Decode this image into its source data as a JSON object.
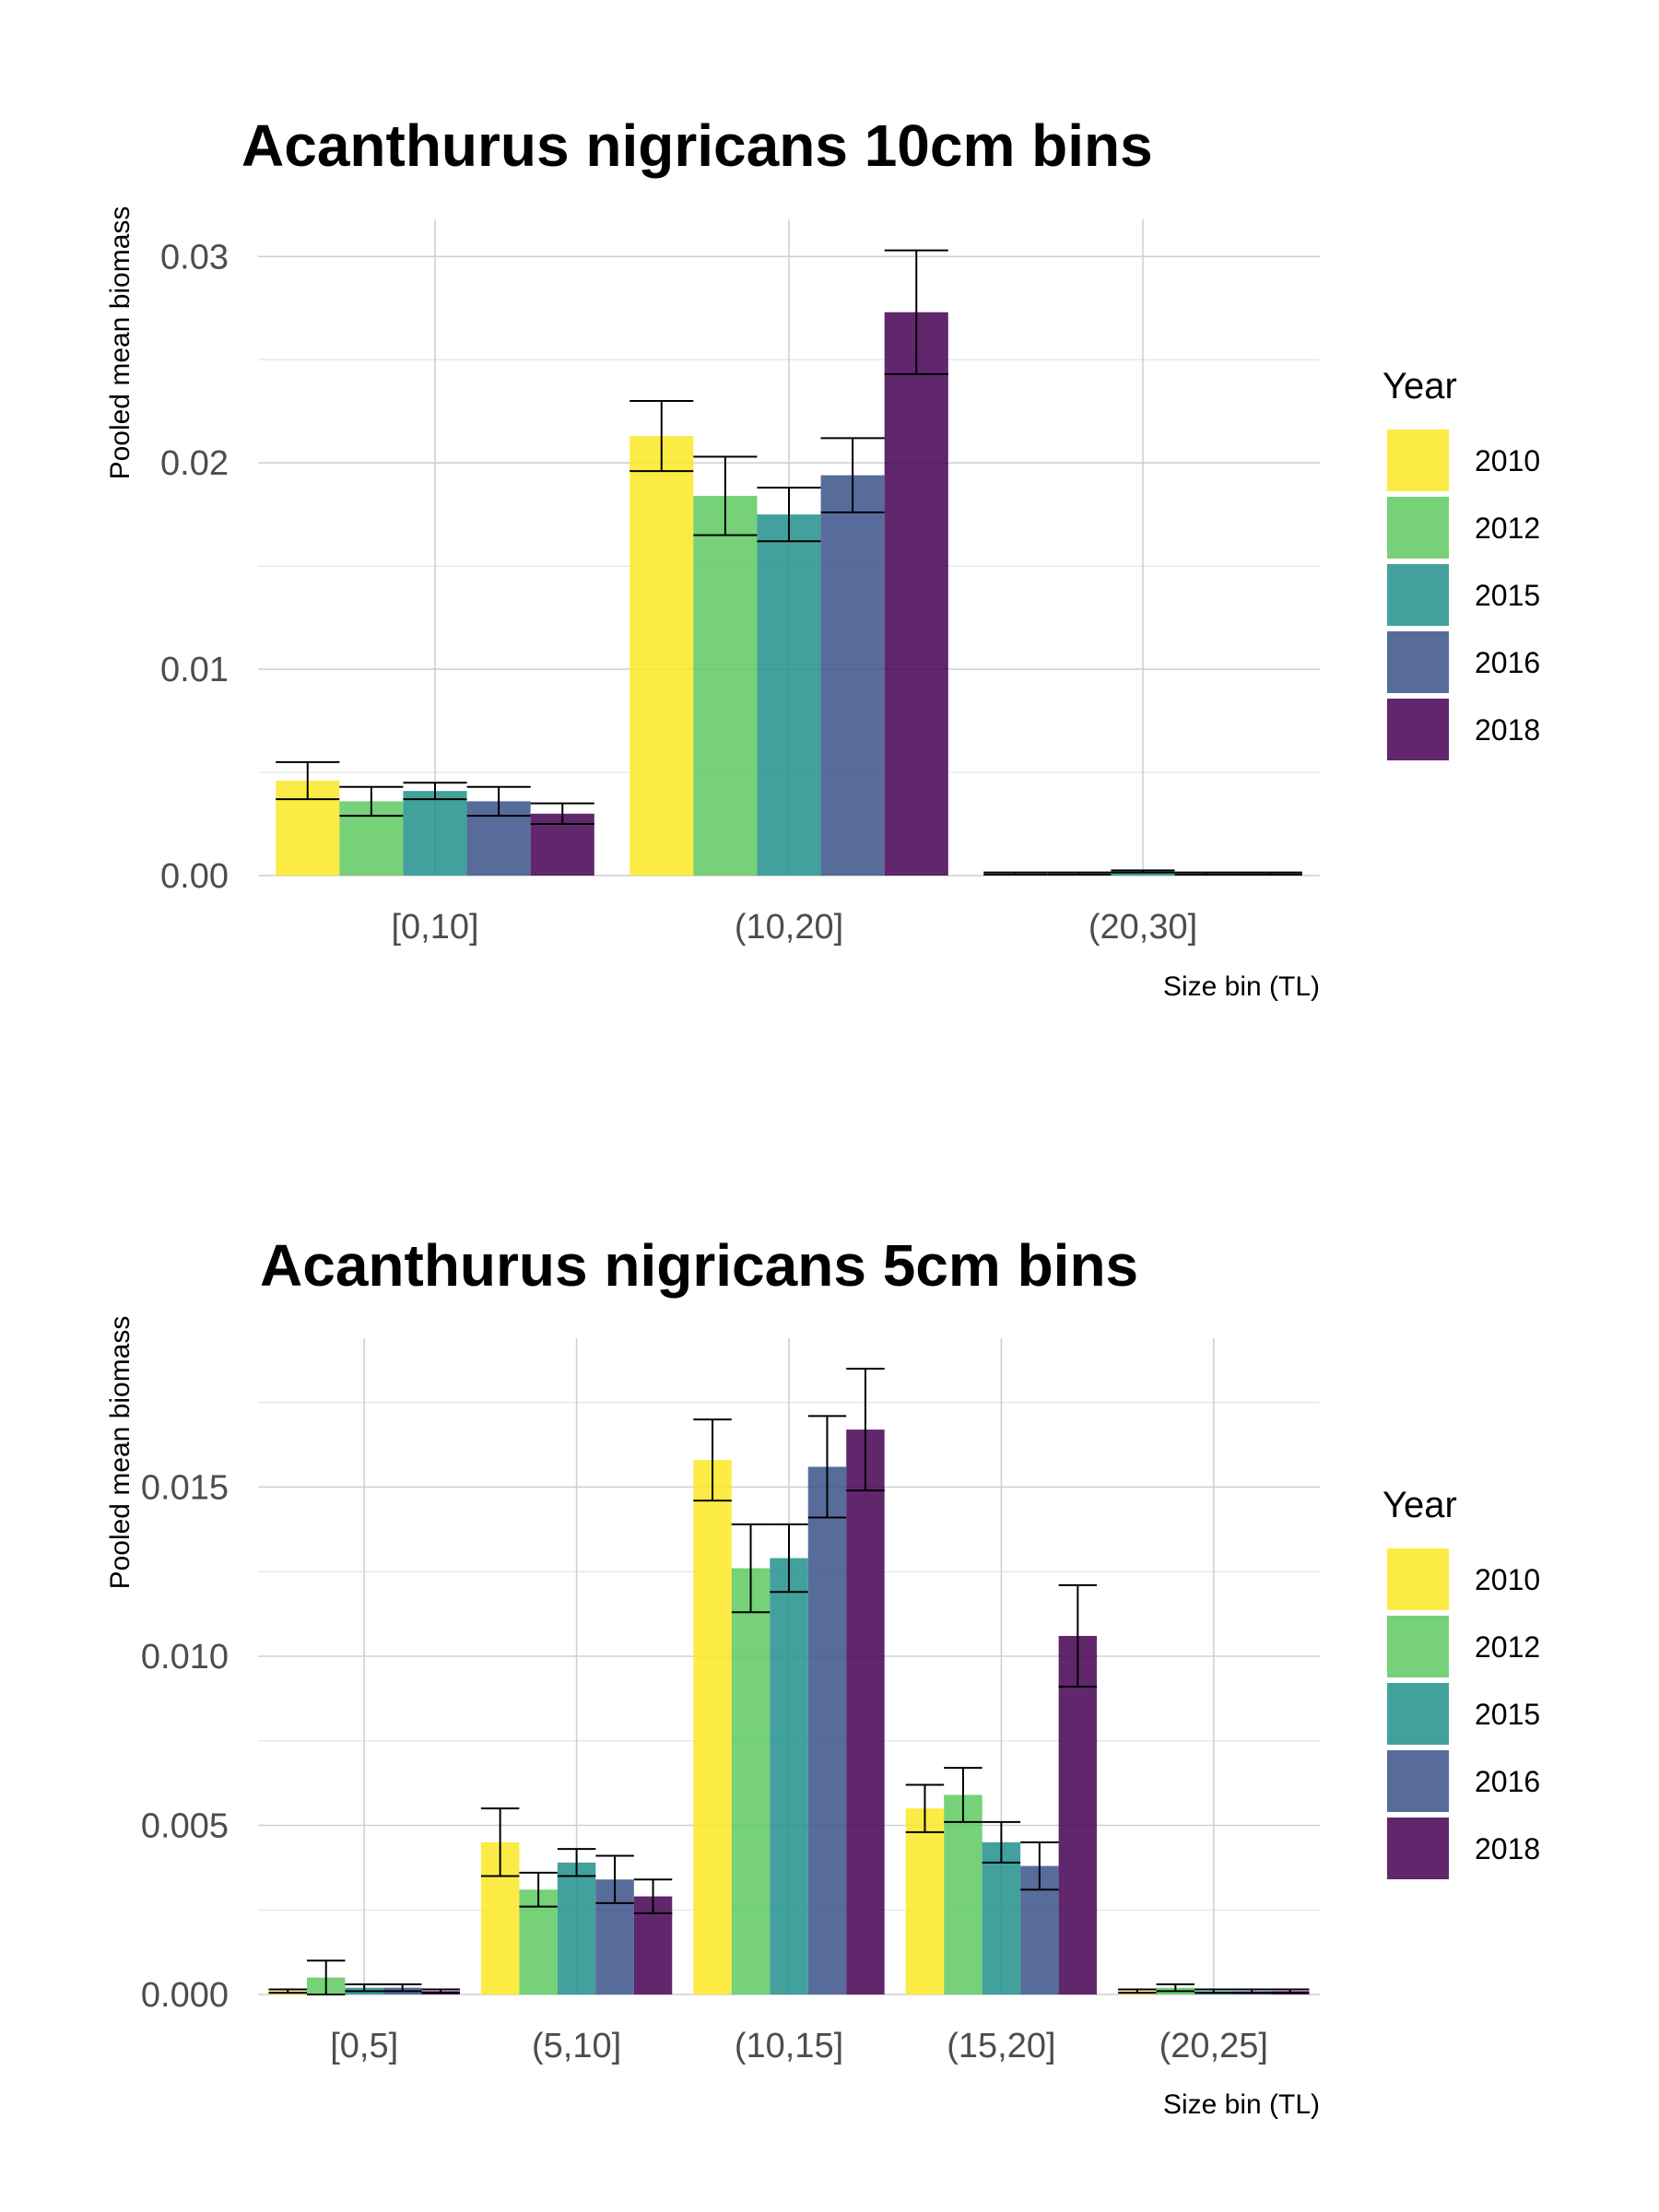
{
  "chart_data": [
    {
      "type": "bar",
      "title": "Acanthurus nigricans 10cm bins",
      "xlabel": "Size bin (TL)",
      "ylabel": "Pooled mean biomass",
      "categories": [
        "[0,10]",
        "(10,20]",
        "(20,30]"
      ],
      "ylim": [
        0,
        0.0318
      ],
      "yticks": [
        "0.00",
        "0.01",
        "0.02",
        "0.03"
      ],
      "ytick_values": [
        0,
        0.01,
        0.02,
        0.03
      ],
      "legend_title": "Year",
      "legend_position": "right",
      "grid": true,
      "series": [
        {
          "name": "2010",
          "color": "#FDE725",
          "values": [
            0.0046,
            0.0213,
            0.0001
          ],
          "err": [
            0.0009,
            0.0017,
            5e-05
          ]
        },
        {
          "name": "2012",
          "color": "#5EC962",
          "values": [
            0.0036,
            0.0184,
            0.0001
          ],
          "err": [
            0.0007,
            0.0019,
            5e-05
          ]
        },
        {
          "name": "2015",
          "color": "#21918C",
          "values": [
            0.0041,
            0.0175,
            0.0002
          ],
          "err": [
            0.0004,
            0.0013,
            5e-05
          ]
        },
        {
          "name": "2016",
          "color": "#3B528B",
          "values": [
            0.0036,
            0.0194,
            0.0001
          ],
          "err": [
            0.0007,
            0.0018,
            5e-05
          ]
        },
        {
          "name": "2018",
          "color": "#440154",
          "values": [
            0.003,
            0.0273,
            0.0001
          ],
          "err": [
            0.0005,
            0.003,
            5e-05
          ]
        }
      ]
    },
    {
      "type": "bar",
      "title": "Acanthurus nigricans 5cm bins",
      "xlabel": "Size bin (TL)",
      "ylabel": "Pooled mean biomass",
      "categories": [
        "[0,5]",
        "(5,10]",
        "(10,15]",
        "(15,20]",
        "(20,25]"
      ],
      "ylim": [
        0,
        0.0194
      ],
      "yticks": [
        "0.000",
        "0.005",
        "0.010",
        "0.015"
      ],
      "ytick_values": [
        0,
        0.005,
        0.01,
        0.015
      ],
      "legend_title": "Year",
      "legend_position": "right",
      "grid": true,
      "series": [
        {
          "name": "2010",
          "color": "#FDE725",
          "values": [
            0.0001,
            0.0045,
            0.0158,
            0.0055,
            0.0001
          ],
          "err": [
            5e-05,
            0.001,
            0.0012,
            0.0007,
            5e-05
          ]
        },
        {
          "name": "2012",
          "color": "#5EC962",
          "values": [
            0.0005,
            0.0031,
            0.0126,
            0.0059,
            0.0002
          ],
          "err": [
            0.0005,
            0.0005,
            0.0013,
            0.0008,
            0.0001
          ]
        },
        {
          "name": "2015",
          "color": "#21918C",
          "values": [
            0.0002,
            0.0039,
            0.0129,
            0.0045,
            0.0001
          ],
          "err": [
            0.0001,
            0.0004,
            0.001,
            0.0006,
            5e-05
          ]
        },
        {
          "name": "2016",
          "color": "#3B528B",
          "values": [
            0.0002,
            0.0034,
            0.0156,
            0.0038,
            0.0001
          ],
          "err": [
            0.0001,
            0.0007,
            0.0015,
            0.0007,
            5e-05
          ]
        },
        {
          "name": "2018",
          "color": "#440154",
          "values": [
            0.0001,
            0.0029,
            0.0167,
            0.0106,
            0.0001
          ],
          "err": [
            5e-05,
            0.0005,
            0.0018,
            0.0015,
            5e-05
          ]
        }
      ]
    }
  ]
}
